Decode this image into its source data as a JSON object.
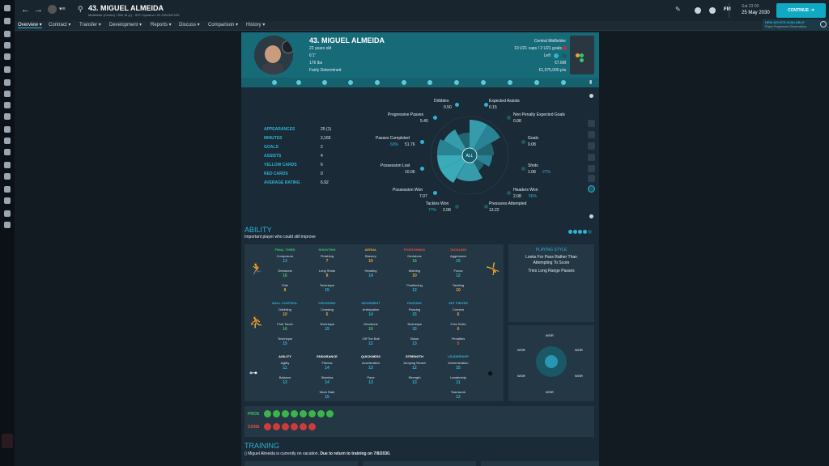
{
  "player": {
    "title": "43. MIGUEL ALMEIDA",
    "subtitle": "Midfielder (Center) / DM, M (L) - SFC Dynamo / ID 2001287109",
    "name_number": "43. MIGUEL ALMEIDA",
    "age": "22 years old",
    "height": "6'1\"",
    "weight": "176 lbs",
    "personality": "Fairly Determined",
    "position": "Central Midfielder",
    "caps": "10 U21 caps / 2 U21 goals",
    "foot": "Left",
    "value": "€7.6M",
    "wage": "€1,075,000 p/a"
  },
  "topbar": {
    "date_day": "Sat 23:00",
    "date": "25 May 2030",
    "continue_label": "CONTINUE",
    "fm_label": "FM",
    "news_title": "NEW ADVICE AVAILABLE",
    "news_sub": "Player Progression Observations"
  },
  "nav": [
    "Overview ▾",
    "Contract ▾",
    "Transfer ▾",
    "Development ▾",
    "Reports ▾",
    "Discuss ▾",
    "Comparison ▾",
    "History ▾"
  ],
  "stats": [
    {
      "k": "APPEARANCES",
      "v": "25 (1)"
    },
    {
      "k": "MINUTES",
      "v": "2,165"
    },
    {
      "k": "GOALS",
      "v": "2"
    },
    {
      "k": "ASSISTS",
      "v": "4"
    },
    {
      "k": "YELLOW CARDS",
      "v": "6"
    },
    {
      "k": "RED CARDS",
      "v": "0"
    },
    {
      "k": "AVERAGE RATING",
      "v": "6.92"
    }
  ],
  "radar": {
    "center_label": "ALL",
    "metrics": [
      {
        "name": "Dribbles",
        "value": "0.50",
        "pct": ""
      },
      {
        "name": "Expected Assists",
        "value": "0.15",
        "pct": ""
      },
      {
        "name": "Progressive Passes",
        "value": "5.45",
        "pct": ""
      },
      {
        "name": "Non Penalty Expected Goals",
        "value": "0.08",
        "pct": ""
      },
      {
        "name": "Passes Completed",
        "value": "51.76",
        "pct": "69%"
      },
      {
        "name": "Goals",
        "value": "0.08",
        "pct": ""
      },
      {
        "name": "Possession Lost",
        "value": "10.06",
        "pct": ""
      },
      {
        "name": "Shots",
        "value": "1.08",
        "pct": "27%"
      },
      {
        "name": "Possession Won",
        "value": "7.07",
        "pct": ""
      },
      {
        "name": "Headers Won",
        "value": "2.08",
        "pct": "56%"
      },
      {
        "name": "Tackles Won",
        "value": "2.08",
        "pct": "77%"
      },
      {
        "name": "Pressures Attempted",
        "value": "13.22",
        "pct": ""
      }
    ]
  },
  "ability": {
    "title": "ABILITY",
    "subtitle": "Important player who could still improve",
    "groups": [
      {
        "title": "FINAL THIRD",
        "color": "#39c46a",
        "attrs": [
          [
            "Composure",
            "13",
            "#2fb2d4"
          ],
          [
            "Decisions",
            "16",
            "#39c46a"
          ],
          [
            "Flair",
            "8",
            "#e8a53a"
          ]
        ]
      },
      {
        "title": "SHOOTING",
        "color": "#39c46a",
        "attrs": [
          [
            "Finishing",
            "7",
            "#e8a53a"
          ],
          [
            "Long Shots",
            "8",
            "#e8a53a"
          ],
          [
            "Technique",
            "15",
            "#2fb2d4"
          ]
        ]
      },
      {
        "title": "AERIAL",
        "color": "#e8a53a",
        "attrs": [
          [
            "Bravery",
            "10",
            "#e8a53a"
          ],
          [
            "Heading",
            "14",
            "#2fb2d4"
          ]
        ]
      },
      {
        "title": "POSITIONING",
        "color": "#e8553a",
        "attrs": [
          [
            "Decisions",
            "16",
            "#39c46a"
          ],
          [
            "Marking",
            "10",
            "#e8a53a"
          ],
          [
            "Positioning",
            "12",
            "#2fb2d4"
          ]
        ]
      },
      {
        "title": "TACKLING",
        "color": "#e8553a",
        "attrs": [
          [
            "Aggression",
            "15",
            "#2fb2d4"
          ],
          [
            "Focus",
            "12",
            "#2fb2d4"
          ],
          [
            "Tackling",
            "10",
            "#e8a53a"
          ]
        ]
      },
      {
        "title": "BALL CONTROL",
        "color": "#2fb2d4",
        "attrs": [
          [
            "Dribbling",
            "10",
            "#e8a53a"
          ],
          [
            "First Touch",
            "16",
            "#39c46a"
          ],
          [
            "Technique",
            "15",
            "#2fb2d4"
          ]
        ]
      },
      {
        "title": "CROSSING",
        "color": "#2fb2d4",
        "attrs": [
          [
            "Crossing",
            "6",
            "#e8a53a"
          ],
          [
            "Technique",
            "15",
            "#2fb2d4"
          ]
        ]
      },
      {
        "title": "MOVEMENT",
        "color": "#2fb2d4",
        "attrs": [
          [
            "Anticipation",
            "14",
            "#2fb2d4"
          ],
          [
            "Decisions",
            "16",
            "#39c46a"
          ],
          [
            "Off The Ball",
            "12",
            "#2fb2d4"
          ]
        ]
      },
      {
        "title": "PASSING",
        "color": "#2fb2d4",
        "attrs": [
          [
            "Passing",
            "15",
            "#2fb2d4"
          ],
          [
            "Technique",
            "15",
            "#2fb2d4"
          ],
          [
            "Vision",
            "13",
            "#2fb2d4"
          ]
        ]
      },
      {
        "title": "SET PIECES",
        "color": "#2fb2d4",
        "attrs": [
          [
            "Corners",
            "6",
            "#e8a53a"
          ],
          [
            "Free Kicks",
            "6",
            "#e8a53a"
          ],
          [
            "Penalties",
            "5",
            "#e8553a"
          ]
        ]
      },
      {
        "title": "AGILITY",
        "color": "#ffffff",
        "attrs": [
          [
            "Agility",
            "11",
            "#2fb2d4"
          ],
          [
            "Balance",
            "13",
            "#2fb2d4"
          ]
        ]
      },
      {
        "title": "ENDURANCE",
        "color": "#ffffff",
        "attrs": [
          [
            "Fitness",
            "14",
            "#2fb2d4"
          ],
          [
            "Stamina",
            "14",
            "#2fb2d4"
          ],
          [
            "Work Rate",
            "15",
            "#2fb2d4"
          ]
        ]
      },
      {
        "title": "QUICKNESS",
        "color": "#ffffff",
        "attrs": [
          [
            "Acceleration",
            "13",
            "#2fb2d4"
          ],
          [
            "Pace",
            "13",
            "#2fb2d4"
          ]
        ]
      },
      {
        "title": "STRENGTH",
        "color": "#ffffff",
        "attrs": [
          [
            "Jumping Reach",
            "12",
            "#2fb2d4"
          ],
          [
            "Strength",
            "13",
            "#2fb2d4"
          ]
        ]
      },
      {
        "title": "LEADERSHIP",
        "color": "#2fb2d4",
        "attrs": [
          [
            "Determination",
            "15",
            "#2fb2d4"
          ],
          [
            "Leadership",
            "11",
            "#2fb2d4"
          ],
          [
            "Teamwork",
            "12",
            "#2fb2d4"
          ]
        ]
      }
    ]
  },
  "playing_style": {
    "title": "PLAYING STYLE",
    "line1": "Looks For Pass Rather Than",
    "line2": "Attempting To Score",
    "line3": "Tries Long Range Passes"
  },
  "wor": {
    "label": "WOR"
  },
  "proscons": {
    "pros_label": "PROS",
    "cons_label": "CONS",
    "pros_color": "#3bb54a",
    "cons_color": "#d23a3a",
    "pros_count": 8,
    "cons_count": 6
  },
  "training": {
    "title": "TRAINING",
    "text": "Miguel Almeida is currently on vacation.",
    "text_bold": "Due to return to training on 7/8/2030."
  },
  "colors": {
    "accent": "#2fb2d4",
    "header": "#176a78",
    "continue": "#0fa9c4"
  }
}
